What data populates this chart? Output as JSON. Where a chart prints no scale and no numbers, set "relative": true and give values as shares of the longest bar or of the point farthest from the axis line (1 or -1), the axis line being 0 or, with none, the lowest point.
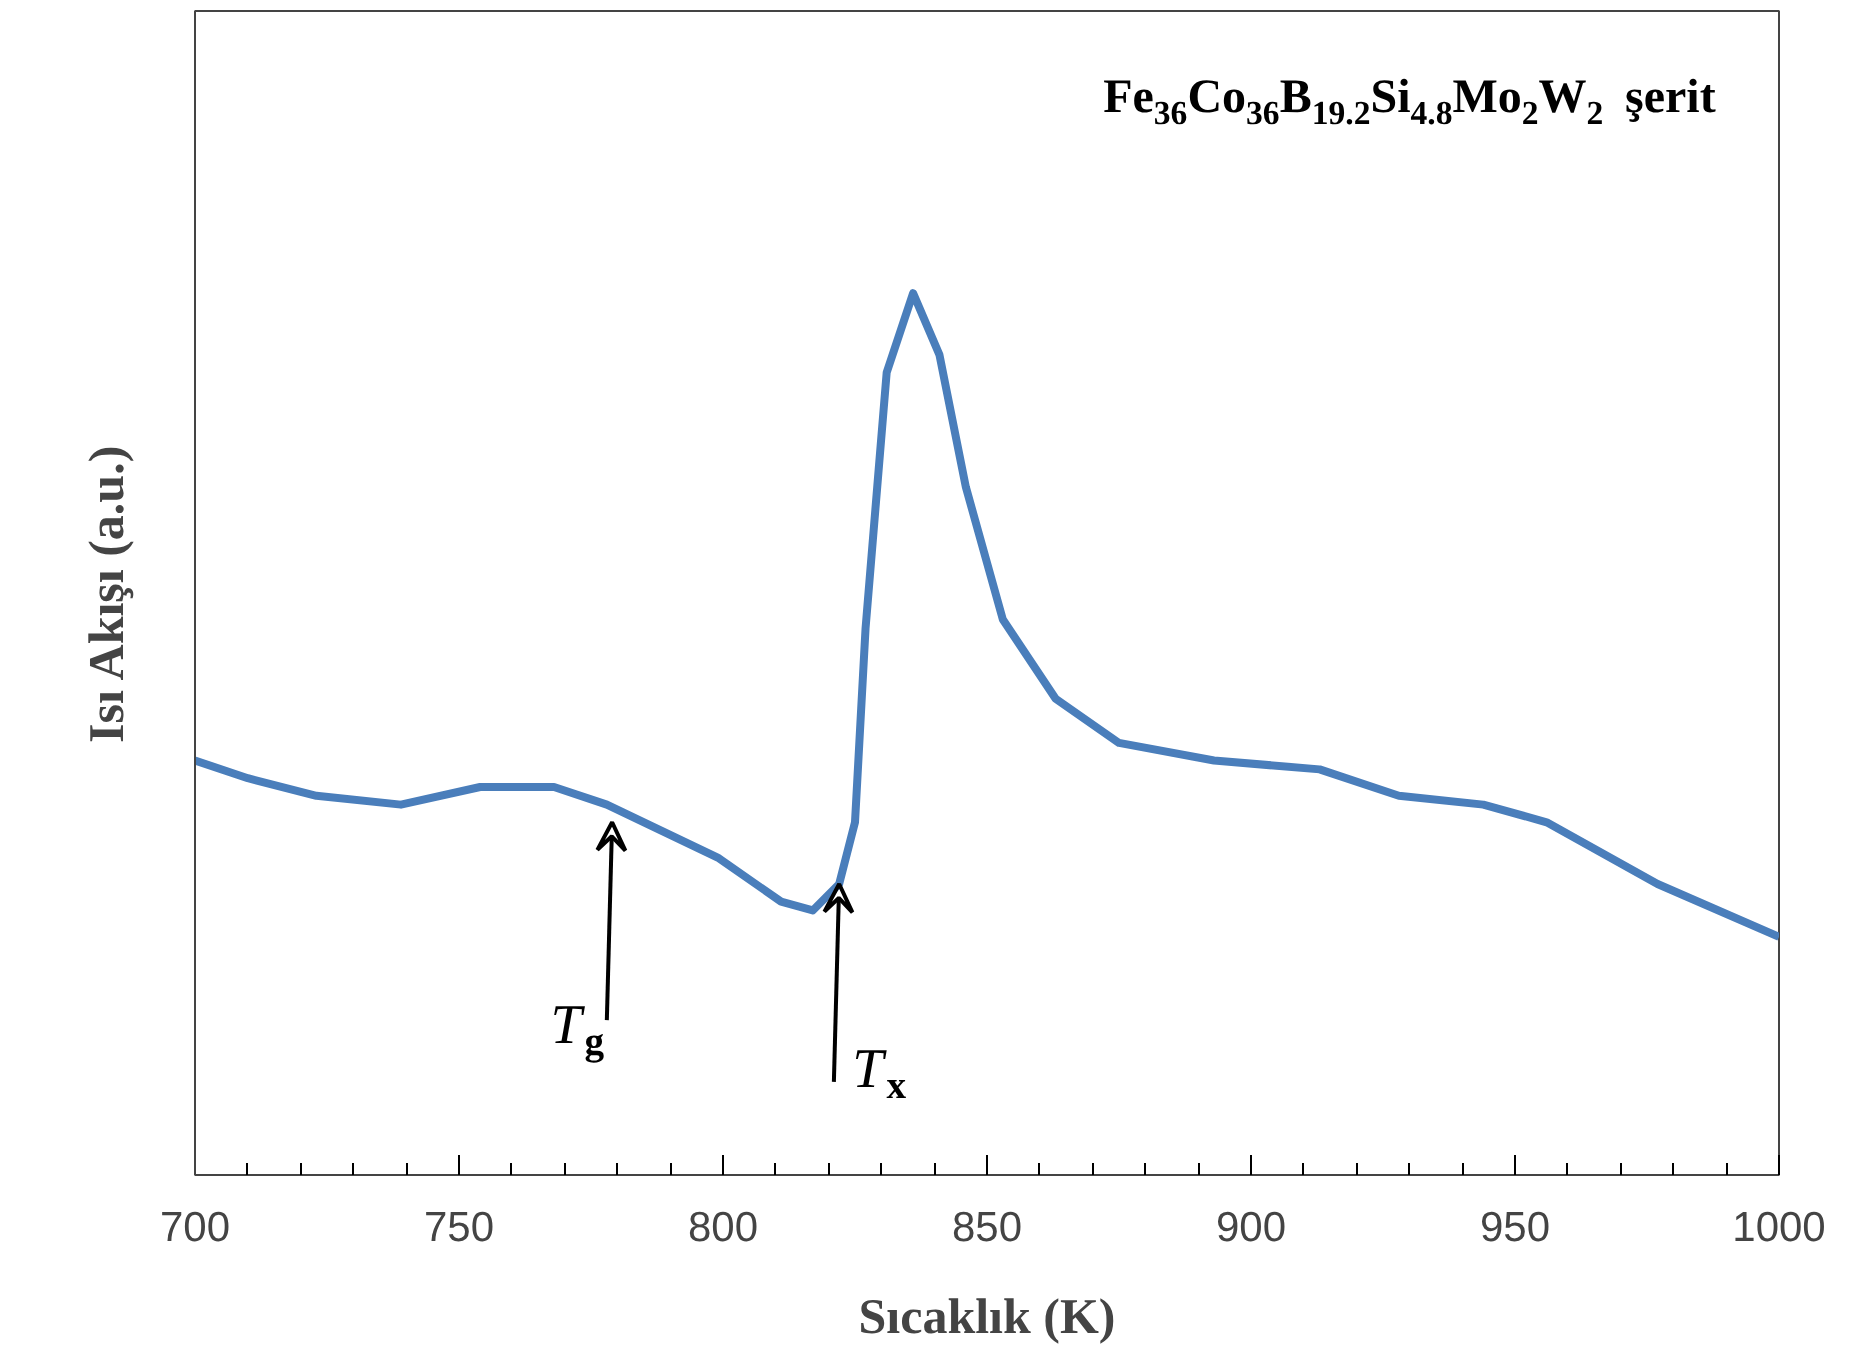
{
  "chart_data": {
    "type": "line",
    "relative": true,
    "title": "Fe$_{36}$Co$_{36}$B$_{19.2}$Si$_{4.8}$Mo$_{2}$W$_{2}$ şerit",
    "xlabel": "Sıcaklık (K)",
    "ylabel": "Isı Akışı (a.u.)",
    "xlim": [
      700,
      1000
    ],
    "xticks": [
      700,
      750,
      800,
      850,
      900,
      950,
      1000
    ],
    "grid": false,
    "series": [
      {
        "color": "#4a7ebb",
        "x": [
          700,
          710,
          723,
          739,
          754,
          768,
          778,
          799,
          811,
          817,
          822,
          825,
          827,
          831,
          836,
          841,
          846,
          853,
          863,
          875,
          893,
          913,
          928,
          944,
          956,
          977,
          1000
        ],
        "values": [
          0.47,
          0.45,
          0.43,
          0.42,
          0.44,
          0.44,
          0.42,
          0.36,
          0.31,
          0.3,
          0.33,
          0.4,
          0.62,
          0.91,
          1.0,
          0.93,
          0.78,
          0.63,
          0.54,
          0.49,
          0.47,
          0.46,
          0.43,
          0.42,
          0.4,
          0.33,
          0.27
        ]
      }
    ],
    "annotations": [
      {
        "text": "T$_{g}$",
        "x": 779,
        "y": 0.4
      },
      {
        "text": "T$_{x}$",
        "x": 822,
        "y": 0.33
      }
    ]
  }
}
